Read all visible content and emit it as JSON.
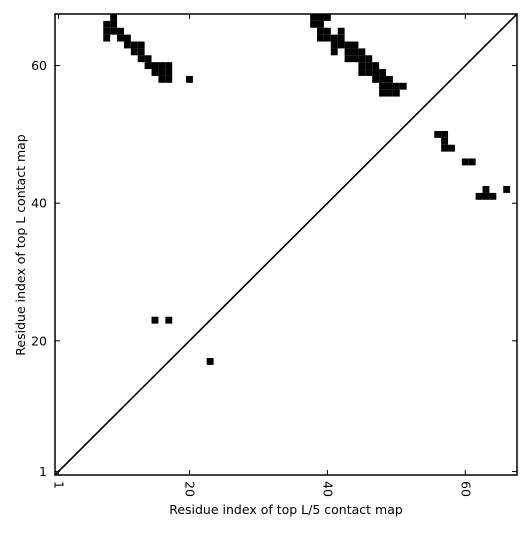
{
  "chart_data": {
    "type": "scatter",
    "marker": "square",
    "color": "#000000",
    "x_label": "Residue index of top L/5 contact map",
    "y_label": "Residue index of top L contact map",
    "xlim": [
      0.5,
      67.5
    ],
    "ylim": [
      0.5,
      67.5
    ],
    "xticks": [
      1,
      20,
      40,
      60
    ],
    "yticks": [
      1,
      20,
      40,
      60
    ],
    "diagonal": true,
    "x": [
      9,
      8,
      9,
      8,
      9,
      10,
      8,
      10,
      11,
      11,
      12,
      13,
      12,
      13,
      13,
      14,
      14,
      15,
      16,
      17,
      15,
      16,
      17,
      16,
      17,
      20,
      38,
      39,
      40,
      38,
      39,
      39,
      40,
      42,
      39,
      40,
      41,
      42,
      41,
      42,
      43,
      44,
      41,
      43,
      44,
      45,
      43,
      44,
      45,
      46,
      45,
      46,
      47,
      45,
      46,
      47,
      48,
      47,
      48,
      49,
      48,
      49,
      50,
      51,
      48,
      49,
      50,
      56,
      57,
      57,
      57,
      58,
      60,
      61,
      63,
      66,
      62,
      63,
      64,
      15,
      17,
      23
    ],
    "y": [
      67,
      66,
      66,
      65,
      65,
      65,
      64,
      64,
      64,
      63,
      63,
      63,
      62,
      62,
      61,
      61,
      60,
      60,
      60,
      60,
      59,
      59,
      59,
      58,
      58,
      58,
      67,
      67,
      67,
      66,
      66,
      65,
      65,
      65,
      64,
      64,
      64,
      64,
      63,
      63,
      63,
      63,
      62,
      62,
      62,
      62,
      61,
      61,
      61,
      61,
      60,
      60,
      60,
      59,
      59,
      59,
      59,
      58,
      58,
      58,
      57,
      57,
      57,
      57,
      56,
      56,
      56,
      50,
      50,
      49,
      48,
      48,
      46,
      46,
      42,
      42,
      41,
      41,
      41,
      23,
      23,
      17
    ]
  }
}
